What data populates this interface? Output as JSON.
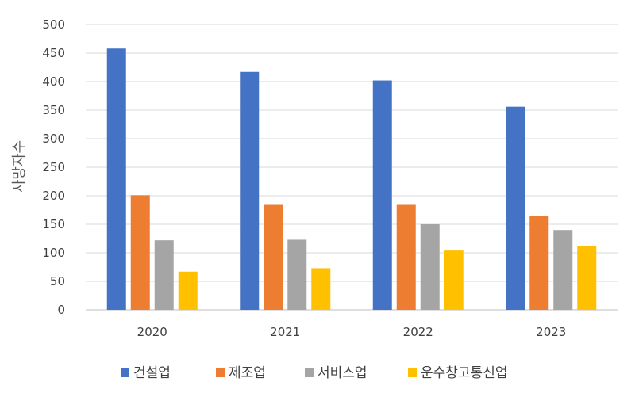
{
  "chart_data": {
    "type": "bar",
    "categories": [
      "2020",
      "2021",
      "2022",
      "2023"
    ],
    "series": [
      {
        "name": "건설업",
        "values": [
          458,
          417,
          402,
          356
        ],
        "color": "#4472C4"
      },
      {
        "name": "제조업",
        "values": [
          201,
          184,
          184,
          165
        ],
        "color": "#ED7D31"
      },
      {
        "name": "서비스업",
        "values": [
          122,
          123,
          150,
          140
        ],
        "color": "#A5A5A5"
      },
      {
        "name": "운수창고통신업",
        "values": [
          67,
          73,
          104,
          112
        ],
        "color": "#FFC000"
      }
    ],
    "ylabel": "사망자수",
    "ylim": [
      0,
      500
    ],
    "yticks": [
      0,
      50,
      100,
      150,
      200,
      250,
      300,
      350,
      400,
      450,
      500
    ],
    "grid": true,
    "legend_position": "bottom"
  }
}
